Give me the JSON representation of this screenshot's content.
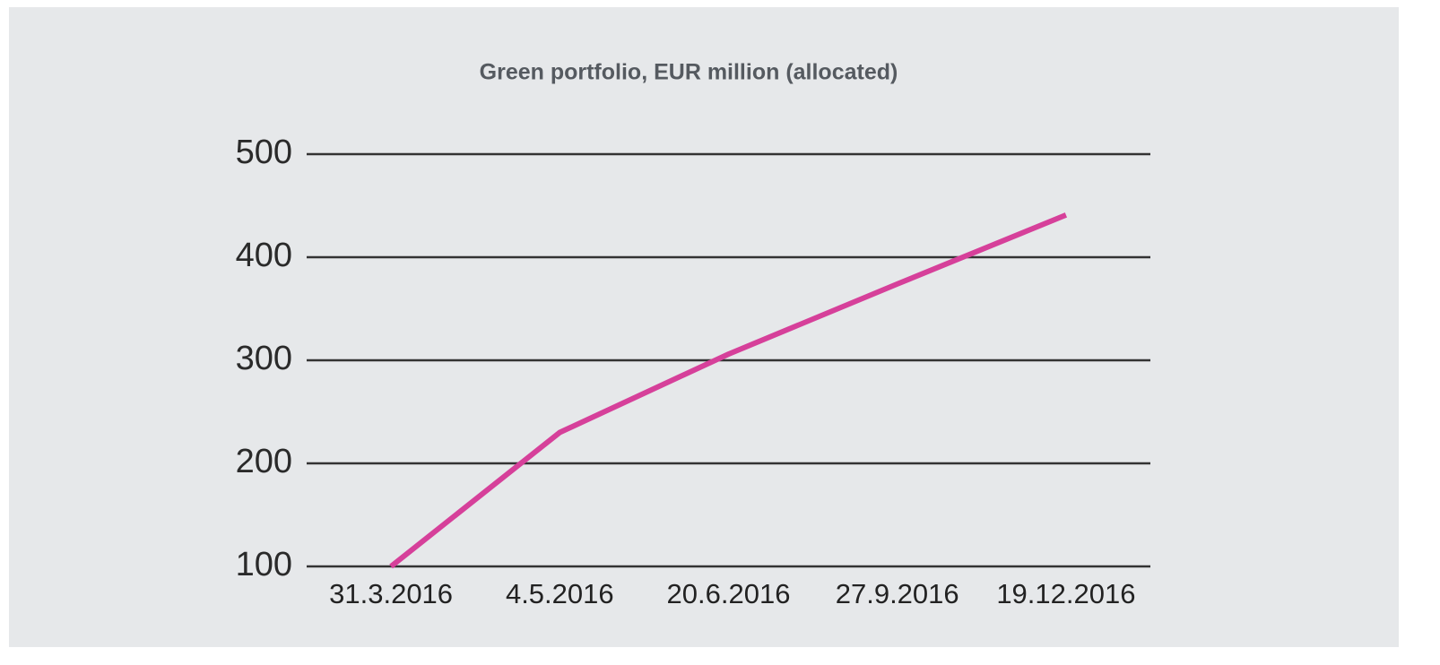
{
  "chart_data": {
    "type": "line",
    "title": "Green portfolio, EUR million (allocated)",
    "categories": [
      "31.3.2016",
      "4.5.2016",
      "20.6.2016",
      "27.9.2016",
      "19.12.2016"
    ],
    "series": [
      {
        "name": "Green portfolio",
        "color": "#d6409a",
        "values": [
          100,
          230,
          306,
          374,
          441
        ]
      }
    ],
    "ylim": [
      100,
      500
    ],
    "yticks": [
      100,
      200,
      300,
      400,
      500
    ],
    "grid": true
  }
}
